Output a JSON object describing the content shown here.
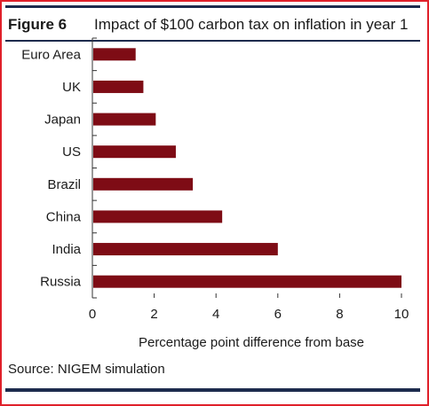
{
  "figure_label": "Figure 6",
  "source": "Source: NIGEM simulation",
  "colors": {
    "bar": "#7e0c15",
    "frame": "#e0202a",
    "rule": "#1d2b4d"
  },
  "chart_data": {
    "type": "bar",
    "orientation": "horizontal",
    "title": "Impact of $100 carbon tax on inflation in year 1",
    "xlabel": "Percentage point difference from base",
    "ylabel": "",
    "categories": [
      "Euro Area",
      "UK",
      "Japan",
      "US",
      "Brazil",
      "China",
      "India",
      "Russia"
    ],
    "values": [
      1.4,
      1.65,
      2.05,
      2.7,
      3.25,
      4.2,
      6.0,
      10.0
    ],
    "xlim": [
      0,
      10
    ],
    "xticks": [
      "0",
      "2",
      "4",
      "6",
      "8",
      "10"
    ],
    "grid": false,
    "legend": "none"
  }
}
